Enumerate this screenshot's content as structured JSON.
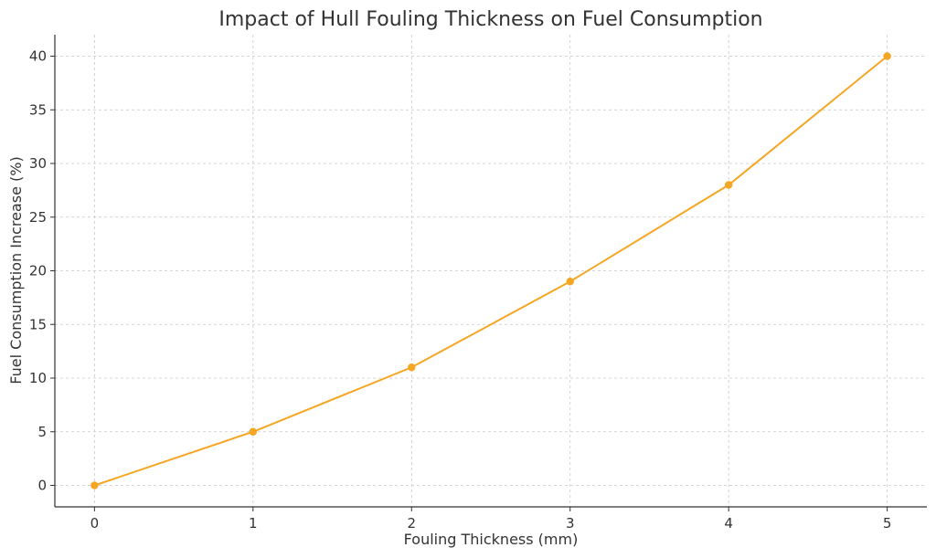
{
  "chart_data": {
    "type": "line",
    "title": "Impact of Hull Fouling Thickness on Fuel Consumption",
    "xlabel": "Fouling Thickness (mm)",
    "ylabel": "Fuel Consumption Increase (%)",
    "x": [
      0,
      1,
      2,
      3,
      4,
      5
    ],
    "series": [
      {
        "values": [
          0,
          5,
          11,
          19,
          28,
          40
        ],
        "color": "#f5a623"
      }
    ],
    "x_ticks": [
      "0",
      "1",
      "2",
      "3",
      "4",
      "5"
    ],
    "y_ticks": [
      "0",
      "5",
      "10",
      "15",
      "20",
      "25",
      "30",
      "35",
      "40"
    ],
    "xlim": [
      -0.25,
      5.25
    ],
    "ylim": [
      -2,
      42
    ],
    "grid": true,
    "marker": "circle"
  }
}
